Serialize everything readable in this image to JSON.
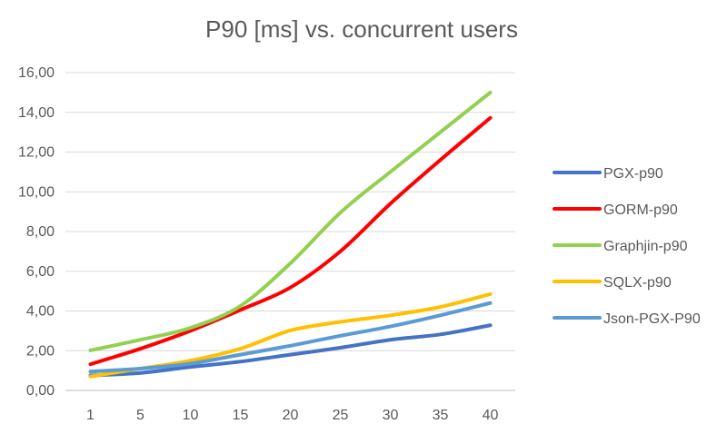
{
  "chart_data": {
    "type": "line",
    "title": "P90 [ms] vs. concurrent users",
    "xlabel": "",
    "ylabel": "",
    "categories": [
      "1",
      "5",
      "10",
      "15",
      "20",
      "25",
      "30",
      "35",
      "40"
    ],
    "ylim": [
      0,
      16
    ],
    "yticks": [
      "0,00",
      "2,00",
      "4,00",
      "6,00",
      "8,00",
      "10,00",
      "12,00",
      "14,00",
      "16,00"
    ],
    "grid": true,
    "legend_position": "right",
    "series": [
      {
        "name": "PGX-p90",
        "color": "#4472C4",
        "values": [
          0.75,
          0.88,
          1.18,
          1.45,
          1.8,
          2.15,
          2.55,
          2.82,
          3.28
        ]
      },
      {
        "name": "GORM-p90",
        "color": "#FF0000",
        "values": [
          1.32,
          2.1,
          3.0,
          4.05,
          5.18,
          7.0,
          9.4,
          11.6,
          13.72
        ]
      },
      {
        "name": "Graphjin-p90",
        "color": "#92D050",
        "values": [
          2.02,
          2.55,
          3.15,
          4.25,
          6.4,
          8.95,
          11.0,
          13.0,
          15.0
        ]
      },
      {
        "name": "SQLX-p90",
        "color": "#FFC000",
        "values": [
          0.7,
          1.1,
          1.5,
          2.1,
          3.02,
          3.45,
          3.78,
          4.2,
          4.85
        ]
      },
      {
        "name": "Json-PGX-P90",
        "color": "#5B9BD5",
        "values": [
          0.95,
          1.1,
          1.35,
          1.8,
          2.25,
          2.75,
          3.22,
          3.78,
          4.4
        ]
      }
    ]
  }
}
